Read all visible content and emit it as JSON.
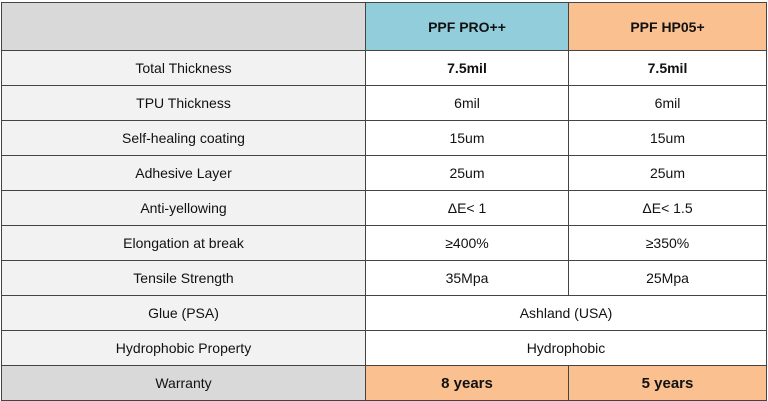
{
  "header": {
    "product_a": "PPF PRO++",
    "product_b": "PPF HP05+"
  },
  "colors": {
    "product_a_header": "#92cddc",
    "product_b_header": "#fac090",
    "warranty_values": "#fac090",
    "corner_cell": "#d9d9d9",
    "label_cells": "#f2f2f2"
  },
  "rows": [
    {
      "label": "Total Thickness",
      "a": "7.5mil",
      "b": "7.5mil"
    },
    {
      "label": "TPU Thickness",
      "a": "6mil",
      "b": "6mil"
    },
    {
      "label": "Self-healing coating",
      "a": "15um",
      "b": "15um"
    },
    {
      "label": "Adhesive Layer",
      "a": "25um",
      "b": "25um"
    },
    {
      "label": "Anti-yellowing",
      "a": "ΔE< 1",
      "b": "ΔE< 1.5"
    },
    {
      "label": "Elongation at break",
      "a": "≥400%",
      "b": "≥350%"
    },
    {
      "label": "Tensile Strength",
      "a": "35Mpa",
      "b": "25Mpa"
    },
    {
      "label": "Glue (PSA)",
      "shared": "Ashland (USA)"
    },
    {
      "label": "Hydrophobic Property",
      "shared": "Hydrophobic"
    },
    {
      "label": "Warranty",
      "a": "8 years",
      "b": "5 years"
    }
  ]
}
